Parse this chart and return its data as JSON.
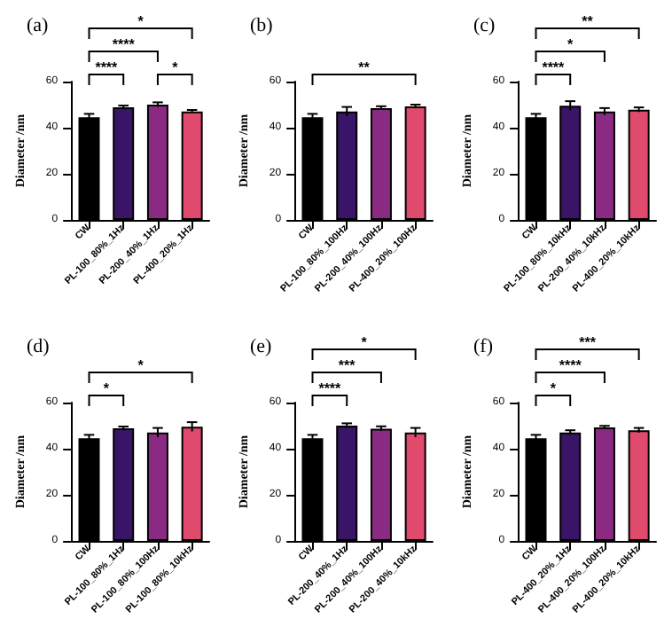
{
  "chart_data": [
    {
      "type": "bar",
      "title": "(a)",
      "ylabel": "Diameter /nm",
      "categories": [
        "CW",
        "PL-100_80%_1Hz",
        "PL-200_40%_1Hz",
        "PL-400_20%_1Hz"
      ],
      "values": [
        44.5,
        48.8,
        50,
        47
      ],
      "errors": [
        1.5,
        0.8,
        1,
        0.7
      ],
      "colors": [
        "#000000",
        "#3a1466",
        "#8a2a82",
        "#e04a6c"
      ],
      "ylim": [
        0,
        60
      ],
      "yticks": [
        0,
        20,
        40,
        60
      ],
      "grid": false,
      "annotations": [
        "****",
        "****",
        "*",
        "*"
      ]
    },
    {
      "type": "bar",
      "title": "(b)",
      "ylabel": "Diameter /nm",
      "categories": [
        "CW",
        "PL-100_80%_100Hz",
        "PL-200_40%_100Hz",
        "PL-400_20%_100Hz"
      ],
      "values": [
        44.5,
        47,
        48.5,
        49.2
      ],
      "errors": [
        1.5,
        2,
        0.8,
        0.8
      ],
      "colors": [
        "#000000",
        "#3a1466",
        "#8a2a82",
        "#e04a6c"
      ],
      "ylim": [
        0,
        60
      ],
      "yticks": [
        0,
        20,
        40,
        60
      ],
      "grid": false,
      "annotations": [
        "**"
      ]
    },
    {
      "type": "bar",
      "title": "(c)",
      "ylabel": "Diameter /nm",
      "categories": [
        "CW",
        "PL-100_80%_10kHz",
        "PL-200_40%_10kHz",
        "PL-400_20%_10kHz"
      ],
      "values": [
        44.5,
        49.5,
        47,
        47.8
      ],
      "errors": [
        1.5,
        2,
        1.5,
        1
      ],
      "colors": [
        "#000000",
        "#3a1466",
        "#8a2a82",
        "#e04a6c"
      ],
      "ylim": [
        0,
        60
      ],
      "yticks": [
        0,
        20,
        40,
        60
      ],
      "grid": false,
      "annotations": [
        "****",
        "*",
        "**"
      ]
    },
    {
      "type": "bar",
      "title": "(d)",
      "ylabel": "Diameter /nm",
      "categories": [
        "CW",
        "PL-100_80%_1Hz",
        "PL-100_80%_100Hz",
        "PL-100_80%_10kHz"
      ],
      "values": [
        44.5,
        48.8,
        47,
        49.5
      ],
      "errors": [
        1.5,
        0.8,
        2,
        2
      ],
      "colors": [
        "#000000",
        "#3a1466",
        "#8a2a82",
        "#e04a6c"
      ],
      "ylim": [
        0,
        60
      ],
      "yticks": [
        0,
        20,
        40,
        60
      ],
      "grid": false,
      "annotations": [
        "*",
        "*"
      ]
    },
    {
      "type": "bar",
      "title": "(e)",
      "ylabel": "Diameter /nm",
      "categories": [
        "CW",
        "PL-200_40%_1Hz",
        "PL-200_40%_100Hz",
        "PL-200_40%_10kHz"
      ],
      "values": [
        44.5,
        50,
        48.7,
        47
      ],
      "errors": [
        1.5,
        1,
        1,
        2
      ],
      "colors": [
        "#000000",
        "#3a1466",
        "#8a2a82",
        "#e04a6c"
      ],
      "ylim": [
        0,
        60
      ],
      "yticks": [
        0,
        20,
        40,
        60
      ],
      "grid": false,
      "annotations": [
        "****",
        "***",
        "*"
      ]
    },
    {
      "type": "bar",
      "title": "(f)",
      "ylabel": "Diameter /nm",
      "categories": [
        "CW",
        "PL-400_20%_1Hz",
        "PL-400_20%_100Hz",
        "PL-400_20%_10kHz"
      ],
      "values": [
        44.5,
        47,
        49.2,
        48
      ],
      "errors": [
        1.5,
        1,
        0.7,
        1
      ],
      "colors": [
        "#000000",
        "#3a1466",
        "#8a2a82",
        "#e04a6c"
      ],
      "ylim": [
        0,
        60
      ],
      "yticks": [
        0,
        20,
        40,
        60
      ],
      "grid": false,
      "annotations": [
        "*",
        "****",
        "***"
      ]
    }
  ]
}
